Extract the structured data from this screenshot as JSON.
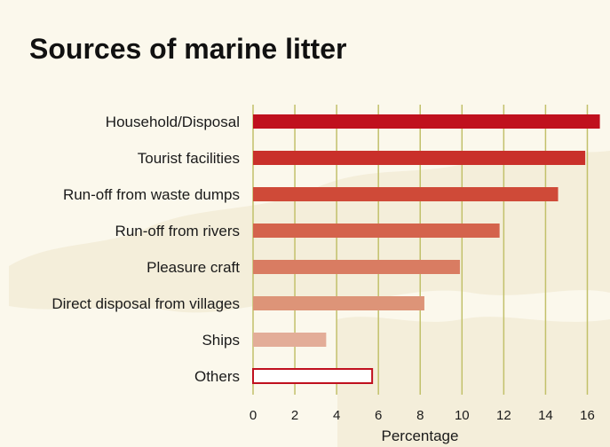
{
  "chart_data": {
    "type": "bar",
    "orientation": "horizontal",
    "title": "Sources of marine litter",
    "xlabel": "Percentage",
    "ylabel": "",
    "categories": [
      "Household/Disposal",
      "Tourist facilities",
      "Run-off from waste dumps",
      "Run-off from rivers",
      "Pleasure craft",
      "Direct disposal from villages",
      "Ships",
      "Others"
    ],
    "values": [
      16.6,
      15.9,
      14.6,
      11.8,
      9.9,
      8.2,
      3.5,
      5.7
    ],
    "bar_colors": [
      "#c0101e",
      "#c9302a",
      "#cf4a38",
      "#d4634c",
      "#d97c62",
      "#dd9478",
      "#e3ad98",
      "#ffffff"
    ],
    "bar_outline_color": "#c0101e",
    "xlim": [
      0,
      17
    ],
    "xticks": [
      0,
      2,
      4,
      6,
      8,
      10,
      12,
      14,
      16
    ],
    "grid": true,
    "grid_color": "#c2c06a",
    "legend": "none"
  }
}
